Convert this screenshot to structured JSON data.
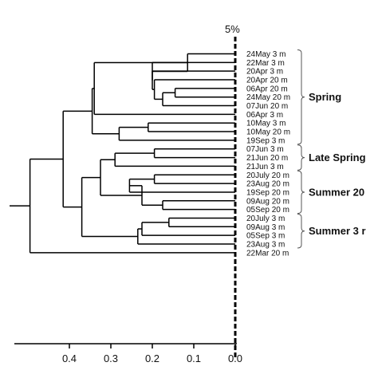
{
  "cutoff_label": "5%",
  "axis_ticks": [
    "0.4",
    "0.3",
    "0.2",
    "0.1",
    "0.0"
  ],
  "leaves": [
    "24May 3 m",
    "22Mar 3 m",
    "20Apr 3 m",
    "20Apr 20 m",
    "06Apr 20 m",
    "24May 20 m",
    "07Jun 20 m",
    "06Apr 3 m",
    "10May 3 m",
    "10May 20 m",
    "19Sep 3 m",
    "07Jun 3 m",
    "21Jun 20 m",
    "21Jun 3 m",
    "20July 20 m",
    "23Aug 20 m",
    "19Sep 20 m",
    "09Aug 20 m",
    "05Sep 20 m",
    "20July 3 m",
    "09Aug 3 m",
    "05Sep 3 m",
    "23Aug 3 m",
    "22Mar 20 m"
  ],
  "groups": [
    "Spring",
    "Late Spring",
    "Summer 20",
    "Summer 3 r"
  ]
}
